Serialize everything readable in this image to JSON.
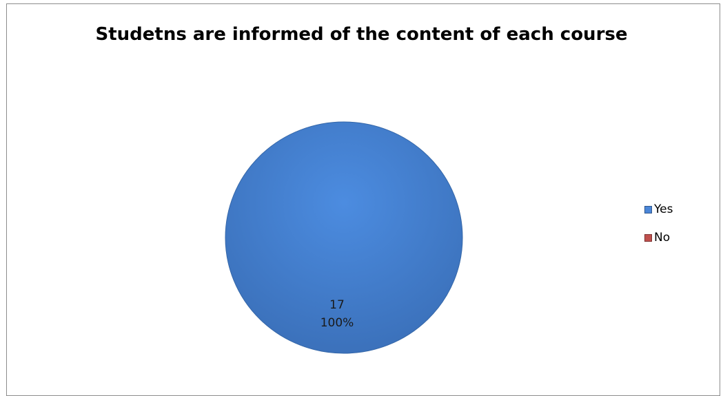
{
  "chart_data": {
    "type": "pie",
    "title": "Studetns are informed of the content of each course",
    "categories": [
      "Yes",
      "No"
    ],
    "values": [
      17,
      0
    ],
    "percent_labels": [
      "100%",
      "0%"
    ],
    "colors": [
      "#4a86d8",
      "#c0504d"
    ],
    "legend_position": "right",
    "data_labels_shown": true
  }
}
